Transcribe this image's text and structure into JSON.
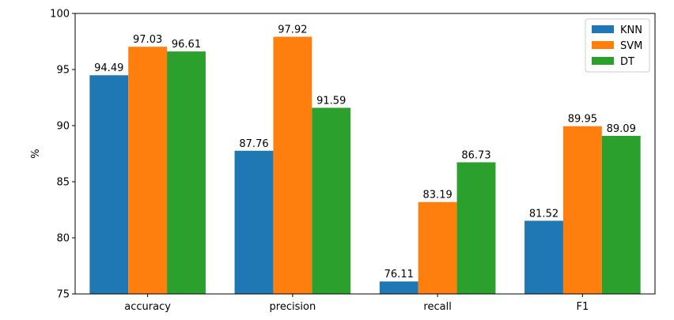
{
  "chart_data": {
    "type": "bar",
    "categories": [
      "accuracy",
      "precision",
      "recall",
      "F1"
    ],
    "series": [
      {
        "name": "KNN",
        "values": [
          94.49,
          87.76,
          76.11,
          81.52
        ],
        "color": "#1f77b4"
      },
      {
        "name": "SVM",
        "values": [
          97.03,
          97.92,
          83.19,
          89.95
        ],
        "color": "#ff7f0e"
      },
      {
        "name": "DT",
        "values": [
          96.61,
          91.59,
          86.73,
          89.09
        ],
        "color": "#2ca02c"
      }
    ],
    "ylabel": "%",
    "ylim": [
      75,
      100
    ],
    "yticks": [
      75,
      80,
      85,
      90,
      95,
      100
    ],
    "grid": false,
    "legend_position": "top-right"
  }
}
